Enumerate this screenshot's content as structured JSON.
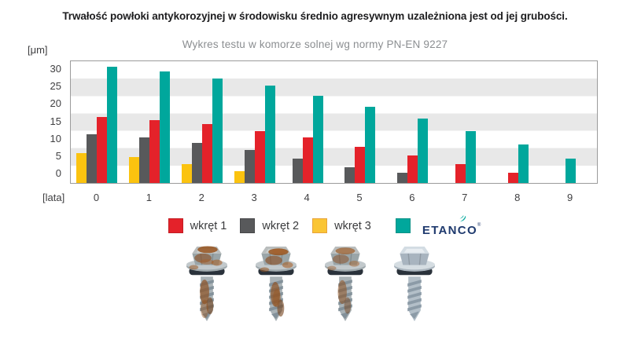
{
  "header": {
    "title": "Trwałość powłoki antykorozyjnej w środowisku średnio agresywnym uzależniona jest od jej grubości.",
    "subtitle": "Wykres testu w komorze solnej wg normy PN-EN 9227"
  },
  "chart_data": {
    "type": "bar",
    "title": "Trwałość powłoki antykorozyjnej w środowisku średnio agresywnym uzależniona jest od jej grubości.",
    "subtitle": "Wykres testu w komorze solnej wg normy PN-EN 9227",
    "y_unit_label": "[μm]",
    "x_unit_label": "[lata]",
    "categories": [
      "0",
      "1",
      "2",
      "3",
      "4",
      "5",
      "6",
      "7",
      "8",
      "9"
    ],
    "y_ticks": [
      30,
      25,
      20,
      15,
      10,
      5,
      0
    ],
    "ylim": [
      -2.5,
      32.5
    ],
    "grid": "horizontal-bands-every-5-units",
    "band_color": "#e8e8e8",
    "bar_order_in_group": [
      "wkręt 3",
      "wkręt 2",
      "wkręt 1",
      "ETANCO"
    ],
    "series": [
      {
        "name": "wkręt 3",
        "color": "#FBC30F",
        "values": [
          6,
          5,
          3,
          1,
          0,
          0,
          0,
          0,
          0,
          0
        ]
      },
      {
        "name": "wkręt 2",
        "color": "#58595B",
        "values": [
          11.5,
          10.5,
          9,
          7,
          4.5,
          2,
          0.5,
          0,
          0,
          0
        ]
      },
      {
        "name": "wkręt 1",
        "color": "#E4222A",
        "values": [
          16.5,
          15.5,
          14.5,
          12.5,
          10.5,
          8,
          5.5,
          3,
          0.5,
          0
        ]
      },
      {
        "name": "ETANCO",
        "color": "#00A79C",
        "values": [
          31,
          29.5,
          27.5,
          25.5,
          22.5,
          19.5,
          16,
          12.5,
          8.5,
          4.5
        ]
      }
    ],
    "legend_position": "bottom"
  },
  "legend": {
    "items": [
      {
        "label": "wkręt 1",
        "color": "#E4222A",
        "border": "#C21E24"
      },
      {
        "label": "wkręt 2",
        "color": "#58595B",
        "border": "#47484A"
      },
      {
        "label": "wkręt 3",
        "color": "#FAC535",
        "border": "#E8A33B"
      },
      {
        "label": "",
        "color": "#00A79C",
        "border": "#0A9287",
        "brand": true
      }
    ],
    "brand_name": "ETANCO",
    "brand_reg_mark": "®",
    "brand_text_color": "#1F3A6E",
    "brand_icon": "etanco-flame-icon",
    "brand_icon_color": "#00A79C"
  },
  "photos": {
    "items": [
      {
        "name": "screw-sample-1-corroded"
      },
      {
        "name": "screw-sample-2-corroded"
      },
      {
        "name": "screw-sample-3-corroded"
      },
      {
        "name": "screw-sample-4-clean"
      }
    ]
  }
}
